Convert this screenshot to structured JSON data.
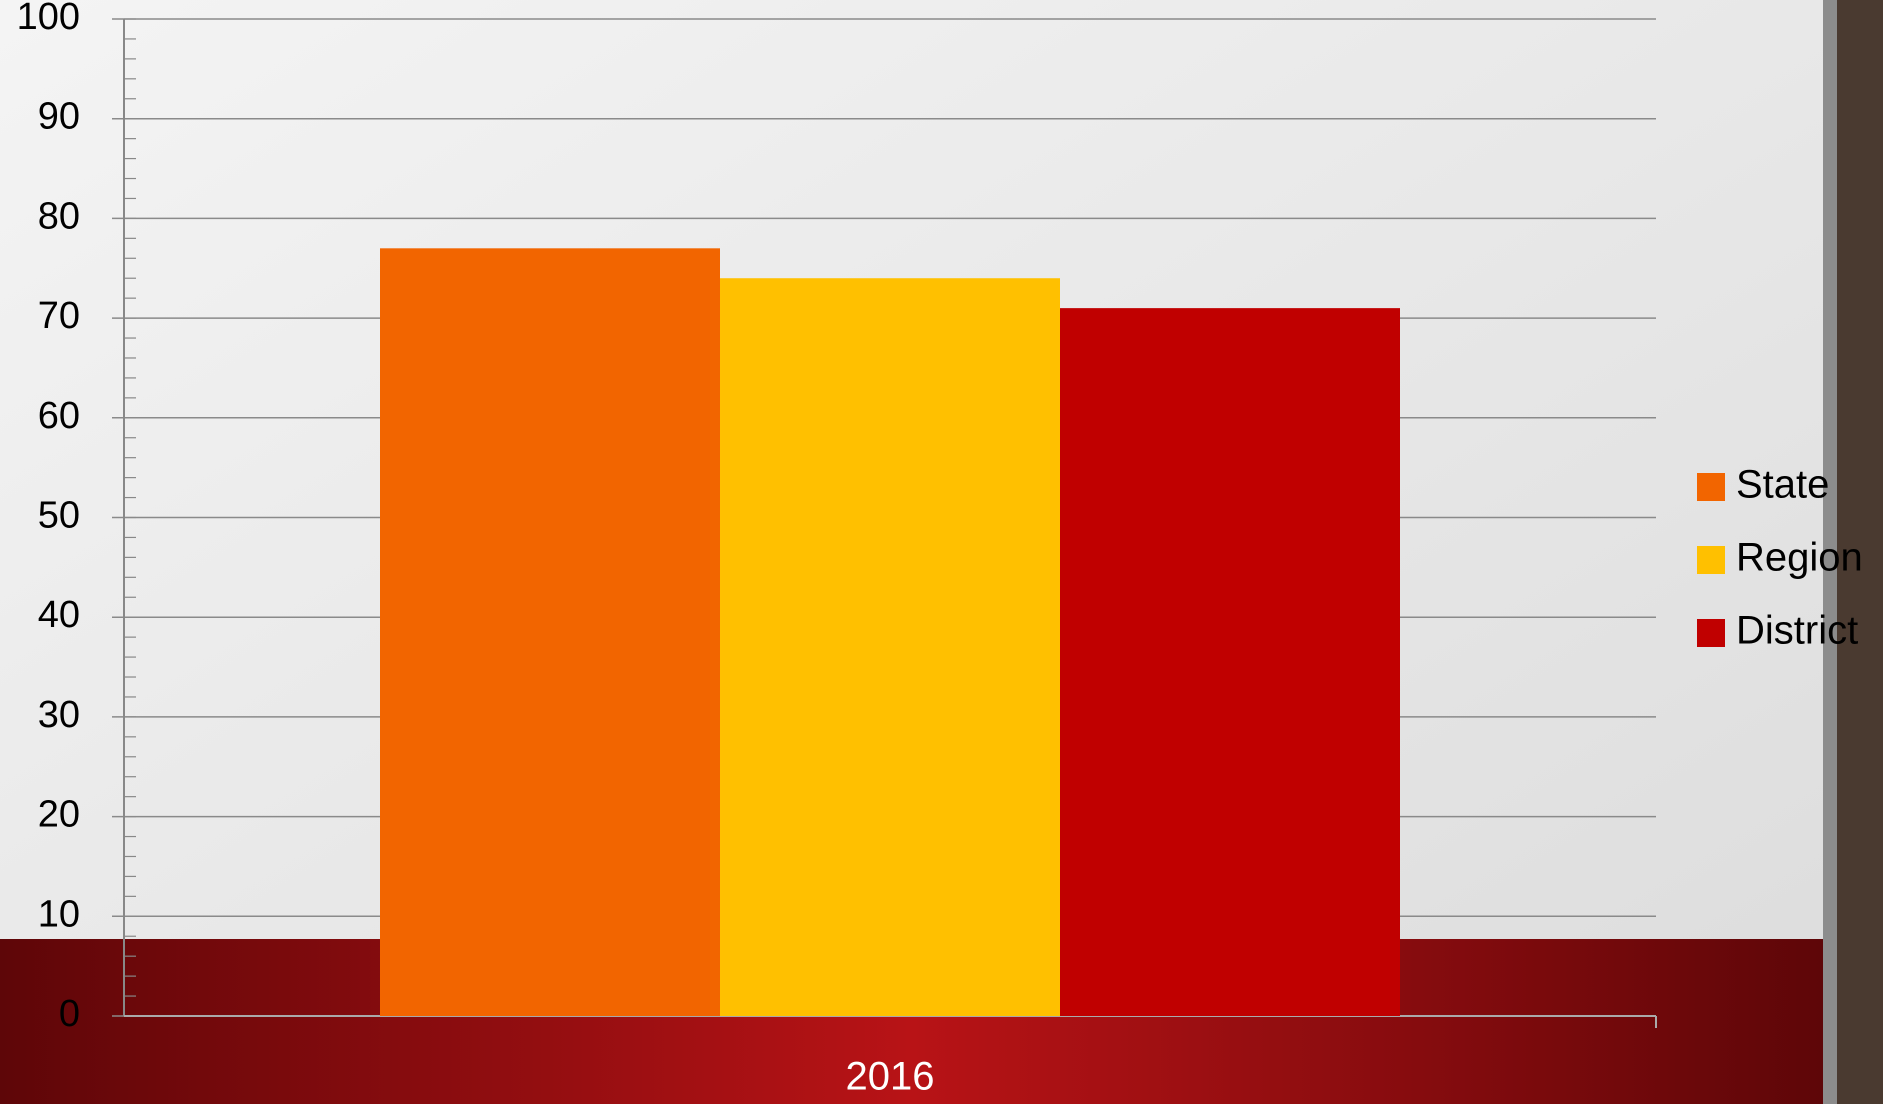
{
  "chart_data": {
    "type": "bar",
    "categories": [
      "2016"
    ],
    "series": [
      {
        "name": "State",
        "color": "#f26500",
        "values": [
          77
        ]
      },
      {
        "name": "Region",
        "color": "#ffc000",
        "values": [
          74
        ]
      },
      {
        "name": "District",
        "color": "#c00000",
        "values": [
          71
        ]
      }
    ],
    "ylim": [
      0,
      100
    ],
    "yticks": [
      0,
      10,
      20,
      30,
      40,
      50,
      60,
      70,
      80,
      90,
      100
    ],
    "grid": true,
    "legend": "right"
  }
}
